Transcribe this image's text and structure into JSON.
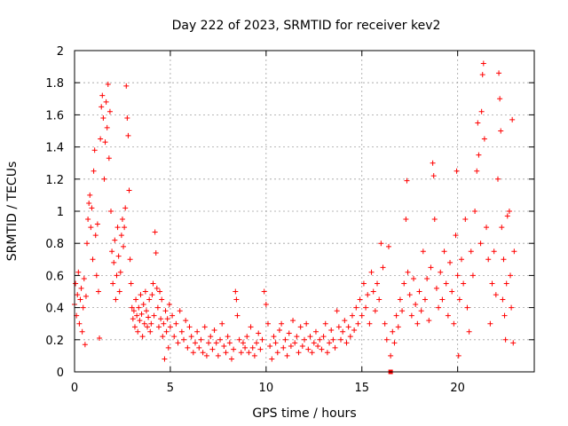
{
  "chart_data": {
    "type": "scatter",
    "title": "Day 222 of 2023, SRMTID for receiver kev2",
    "xlabel": "GPS time / hours",
    "ylabel": "SRMTID / TECUs",
    "xlim": [
      0,
      24
    ],
    "ylim": [
      0,
      2
    ],
    "grid": true,
    "marker": "+",
    "color": "#ff0000",
    "x_ticks": [
      0,
      5,
      10,
      15,
      20
    ],
    "x_tick_labels": [
      "0",
      "5",
      "10",
      "15",
      "20"
    ],
    "y_ticks": [
      0,
      0.2,
      0.4,
      0.6,
      0.8,
      1.0,
      1.2,
      1.4,
      1.6,
      1.8,
      2.0
    ],
    "y_tick_labels": [
      "0",
      "0.2",
      "0.4",
      "0.6",
      "0.8",
      "1",
      "1.2",
      "1.4",
      "1.6",
      "1.8",
      "2"
    ],
    "series": [
      {
        "name": "kev2",
        "points": [
          [
            0.0,
            0.42
          ],
          [
            0.05,
            0.55
          ],
          [
            0.1,
            0.35
          ],
          [
            0.15,
            0.48
          ],
          [
            0.2,
            0.62
          ],
          [
            0.25,
            0.3
          ],
          [
            0.3,
            0.45
          ],
          [
            0.35,
            0.52
          ],
          [
            0.4,
            0.25
          ],
          [
            0.45,
            0.4
          ],
          [
            0.5,
            0.58
          ],
          [
            0.55,
            0.17
          ],
          [
            0.6,
            0.47
          ],
          [
            0.65,
            0.8
          ],
          [
            0.7,
            0.95
          ],
          [
            0.75,
            1.05
          ],
          [
            0.8,
            1.1
          ],
          [
            0.85,
            0.9
          ],
          [
            0.9,
            1.02
          ],
          [
            0.95,
            0.7
          ],
          [
            1.0,
            1.25
          ],
          [
            1.05,
            1.38
          ],
          [
            1.1,
            0.85
          ],
          [
            1.15,
            0.6
          ],
          [
            1.2,
            0.92
          ],
          [
            1.25,
            0.5
          ],
          [
            1.3,
            0.21
          ],
          [
            1.35,
            1.45
          ],
          [
            1.4,
            1.65
          ],
          [
            1.45,
            1.72
          ],
          [
            1.5,
            1.58
          ],
          [
            1.55,
            1.2
          ],
          [
            1.6,
            1.43
          ],
          [
            1.65,
            1.68
          ],
          [
            1.7,
            1.52
          ],
          [
            1.75,
            1.79
          ],
          [
            1.8,
            1.33
          ],
          [
            1.85,
            1.62
          ],
          [
            1.9,
            1.0
          ],
          [
            1.95,
            0.75
          ],
          [
            2.0,
            0.55
          ],
          [
            2.05,
            0.68
          ],
          [
            2.1,
            0.82
          ],
          [
            2.15,
            0.45
          ],
          [
            2.2,
            0.6
          ],
          [
            2.25,
            0.9
          ],
          [
            2.3,
            0.72
          ],
          [
            2.35,
            0.5
          ],
          [
            2.4,
            0.62
          ],
          [
            2.45,
            0.85
          ],
          [
            2.5,
            0.95
          ],
          [
            2.55,
            0.78
          ],
          [
            2.6,
            0.9
          ],
          [
            2.65,
            1.02
          ],
          [
            2.7,
            1.78
          ],
          [
            2.75,
            1.58
          ],
          [
            2.8,
            1.47
          ],
          [
            2.85,
            1.13
          ],
          [
            2.9,
            0.7
          ],
          [
            2.95,
            0.55
          ],
          [
            3.0,
            0.4
          ],
          [
            3.05,
            0.33
          ],
          [
            3.1,
            0.38
          ],
          [
            3.15,
            0.28
          ],
          [
            3.2,
            0.45
          ],
          [
            3.25,
            0.35
          ],
          [
            3.3,
            0.25
          ],
          [
            3.35,
            0.4
          ],
          [
            3.4,
            0.32
          ],
          [
            3.45,
            0.48
          ],
          [
            3.5,
            0.36
          ],
          [
            3.55,
            0.22
          ],
          [
            3.6,
            0.42
          ],
          [
            3.65,
            0.3
          ],
          [
            3.7,
            0.5
          ],
          [
            3.75,
            0.38
          ],
          [
            3.8,
            0.28
          ],
          [
            3.85,
            0.34
          ],
          [
            3.9,
            0.45
          ],
          [
            3.95,
            0.25
          ],
          [
            4.0,
            0.3
          ],
          [
            4.05,
            0.48
          ],
          [
            4.1,
            0.55
          ],
          [
            4.15,
            0.35
          ],
          [
            4.2,
            0.87
          ],
          [
            4.25,
            0.74
          ],
          [
            4.3,
            0.52
          ],
          [
            4.35,
            0.4
          ],
          [
            4.4,
            0.28
          ],
          [
            4.45,
            0.5
          ],
          [
            4.5,
            0.33
          ],
          [
            4.55,
            0.45
          ],
          [
            4.6,
            0.22
          ],
          [
            4.65,
            0.3
          ],
          [
            4.7,
            0.08
          ],
          [
            4.75,
            0.38
          ],
          [
            4.8,
            0.25
          ],
          [
            4.85,
            0.33
          ],
          [
            4.9,
            0.15
          ],
          [
            4.95,
            0.42
          ],
          [
            5.0,
            0.28
          ],
          [
            5.1,
            0.35
          ],
          [
            5.2,
            0.22
          ],
          [
            5.3,
            0.3
          ],
          [
            5.4,
            0.18
          ],
          [
            5.5,
            0.38
          ],
          [
            5.6,
            0.25
          ],
          [
            5.7,
            0.2
          ],
          [
            5.8,
            0.32
          ],
          [
            5.9,
            0.15
          ],
          [
            6.0,
            0.28
          ],
          [
            6.1,
            0.22
          ],
          [
            6.2,
            0.12
          ],
          [
            6.3,
            0.18
          ],
          [
            6.4,
            0.25
          ],
          [
            6.5,
            0.15
          ],
          [
            6.6,
            0.2
          ],
          [
            6.7,
            0.12
          ],
          [
            6.8,
            0.28
          ],
          [
            6.9,
            0.1
          ],
          [
            7.0,
            0.18
          ],
          [
            7.1,
            0.22
          ],
          [
            7.2,
            0.14
          ],
          [
            7.3,
            0.26
          ],
          [
            7.4,
            0.18
          ],
          [
            7.5,
            0.1
          ],
          [
            7.6,
            0.2
          ],
          [
            7.7,
            0.3
          ],
          [
            7.8,
            0.16
          ],
          [
            7.9,
            0.12
          ],
          [
            8.0,
            0.22
          ],
          [
            8.1,
            0.18
          ],
          [
            8.2,
            0.08
          ],
          [
            8.3,
            0.14
          ],
          [
            8.4,
            0.5
          ],
          [
            8.45,
            0.45
          ],
          [
            8.5,
            0.35
          ],
          [
            8.6,
            0.2
          ],
          [
            8.7,
            0.12
          ],
          [
            8.8,
            0.18
          ],
          [
            8.9,
            0.15
          ],
          [
            9.0,
            0.22
          ],
          [
            9.1,
            0.12
          ],
          [
            9.2,
            0.28
          ],
          [
            9.3,
            0.15
          ],
          [
            9.4,
            0.1
          ],
          [
            9.5,
            0.18
          ],
          [
            9.6,
            0.24
          ],
          [
            9.7,
            0.14
          ],
          [
            9.8,
            0.2
          ],
          [
            9.9,
            0.5
          ],
          [
            10.0,
            0.42
          ],
          [
            10.1,
            0.3
          ],
          [
            10.2,
            0.16
          ],
          [
            10.3,
            0.08
          ],
          [
            10.4,
            0.22
          ],
          [
            10.5,
            0.18
          ],
          [
            10.6,
            0.12
          ],
          [
            10.7,
            0.26
          ],
          [
            10.8,
            0.3
          ],
          [
            10.9,
            0.15
          ],
          [
            11.0,
            0.2
          ],
          [
            11.1,
            0.1
          ],
          [
            11.2,
            0.24
          ],
          [
            11.3,
            0.16
          ],
          [
            11.4,
            0.32
          ],
          [
            11.5,
            0.18
          ],
          [
            11.6,
            0.22
          ],
          [
            11.7,
            0.12
          ],
          [
            11.8,
            0.28
          ],
          [
            11.9,
            0.16
          ],
          [
            12.0,
            0.2
          ],
          [
            12.1,
            0.3
          ],
          [
            12.2,
            0.14
          ],
          [
            12.3,
            0.22
          ],
          [
            12.4,
            0.12
          ],
          [
            12.5,
            0.18
          ],
          [
            12.6,
            0.25
          ],
          [
            12.7,
            0.16
          ],
          [
            12.8,
            0.2
          ],
          [
            12.9,
            0.14
          ],
          [
            13.0,
            0.22
          ],
          [
            13.1,
            0.3
          ],
          [
            13.2,
            0.12
          ],
          [
            13.3,
            0.18
          ],
          [
            13.4,
            0.26
          ],
          [
            13.5,
            0.2
          ],
          [
            13.6,
            0.15
          ],
          [
            13.7,
            0.38
          ],
          [
            13.8,
            0.28
          ],
          [
            13.9,
            0.2
          ],
          [
            14.0,
            0.25
          ],
          [
            14.1,
            0.32
          ],
          [
            14.2,
            0.18
          ],
          [
            14.3,
            0.28
          ],
          [
            14.4,
            0.22
          ],
          [
            14.5,
            0.35
          ],
          [
            14.6,
            0.26
          ],
          [
            14.7,
            0.4
          ],
          [
            14.8,
            0.3
          ],
          [
            14.9,
            0.45
          ],
          [
            15.0,
            0.35
          ],
          [
            15.1,
            0.55
          ],
          [
            15.2,
            0.4
          ],
          [
            15.3,
            0.48
          ],
          [
            15.4,
            0.3
          ],
          [
            15.5,
            0.62
          ],
          [
            15.6,
            0.5
          ],
          [
            15.7,
            0.38
          ],
          [
            15.8,
            0.55
          ],
          [
            15.9,
            0.45
          ],
          [
            16.0,
            0.8
          ],
          [
            16.1,
            0.65
          ],
          [
            16.2,
            0.3
          ],
          [
            16.3,
            0.2
          ],
          [
            16.4,
            0.78
          ],
          [
            16.5,
            0.1
          ],
          [
            16.6,
            0.25
          ],
          [
            16.7,
            0.18
          ],
          [
            16.8,
            0.35
          ],
          [
            16.9,
            0.28
          ],
          [
            17.0,
            0.45
          ],
          [
            17.1,
            0.38
          ],
          [
            17.2,
            0.55
          ],
          [
            17.3,
            0.95
          ],
          [
            17.35,
            1.19
          ],
          [
            17.4,
            0.62
          ],
          [
            17.5,
            0.48
          ],
          [
            17.6,
            0.35
          ],
          [
            17.7,
            0.58
          ],
          [
            17.8,
            0.42
          ],
          [
            17.9,
            0.3
          ],
          [
            18.0,
            0.5
          ],
          [
            18.1,
            0.38
          ],
          [
            18.2,
            0.75
          ],
          [
            18.3,
            0.45
          ],
          [
            18.4,
            0.58
          ],
          [
            18.5,
            0.32
          ],
          [
            18.6,
            0.65
          ],
          [
            18.7,
            1.3
          ],
          [
            18.75,
            1.22
          ],
          [
            18.8,
            0.95
          ],
          [
            18.9,
            0.52
          ],
          [
            19.0,
            0.4
          ],
          [
            19.1,
            0.62
          ],
          [
            19.2,
            0.45
          ],
          [
            19.3,
            0.75
          ],
          [
            19.4,
            0.55
          ],
          [
            19.5,
            0.35
          ],
          [
            19.6,
            0.68
          ],
          [
            19.7,
            0.5
          ],
          [
            19.8,
            0.3
          ],
          [
            19.9,
            0.85
          ],
          [
            19.95,
            1.25
          ],
          [
            20.0,
            0.6
          ],
          [
            20.05,
            0.1
          ],
          [
            20.1,
            0.45
          ],
          [
            20.2,
            0.7
          ],
          [
            20.3,
            0.55
          ],
          [
            20.4,
            0.95
          ],
          [
            20.5,
            0.4
          ],
          [
            20.6,
            0.25
          ],
          [
            20.7,
            0.75
          ],
          [
            20.8,
            0.6
          ],
          [
            20.9,
            1.0
          ],
          [
            21.0,
            1.25
          ],
          [
            21.05,
            1.55
          ],
          [
            21.1,
            1.35
          ],
          [
            21.2,
            0.8
          ],
          [
            21.25,
            1.62
          ],
          [
            21.3,
            1.85
          ],
          [
            21.35,
            1.92
          ],
          [
            21.4,
            1.45
          ],
          [
            21.5,
            0.9
          ],
          [
            21.6,
            0.7
          ],
          [
            21.7,
            0.3
          ],
          [
            21.8,
            0.55
          ],
          [
            21.9,
            0.75
          ],
          [
            22.0,
            0.48
          ],
          [
            22.1,
            1.2
          ],
          [
            22.15,
            1.86
          ],
          [
            22.2,
            1.7
          ],
          [
            22.25,
            1.5
          ],
          [
            22.3,
            0.9
          ],
          [
            22.35,
            0.45
          ],
          [
            22.4,
            0.7
          ],
          [
            22.45,
            0.35
          ],
          [
            22.5,
            0.2
          ],
          [
            22.55,
            0.55
          ],
          [
            22.6,
            0.97
          ],
          [
            22.7,
            1.0
          ],
          [
            22.75,
            0.6
          ],
          [
            22.8,
            0.4
          ],
          [
            22.85,
            1.57
          ],
          [
            22.9,
            0.18
          ],
          [
            22.95,
            0.75
          ]
        ],
        "square_markers": [
          [
            16.5,
            0.0
          ]
        ]
      }
    ]
  }
}
